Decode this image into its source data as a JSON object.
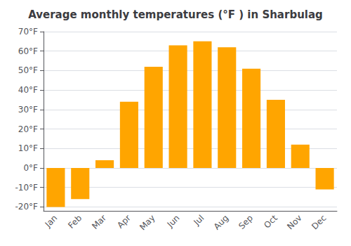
{
  "chart_data": {
    "type": "bar",
    "title": "Average monthly temperatures (°F ) in Sharbulag",
    "categories": [
      "Jan",
      "Feb",
      "Mar",
      "Apr",
      "May",
      "Jun",
      "Jul",
      "Aug",
      "Sep",
      "Oct",
      "Nov",
      "Dec"
    ],
    "values": [
      -20,
      -16,
      4,
      34,
      52,
      63,
      65,
      62,
      51,
      35,
      12,
      -11
    ],
    "color": "#FFA500",
    "ylim": [
      -22,
      70
    ],
    "yticks": [
      {
        "value": -20,
        "label": "-20°F"
      },
      {
        "value": -10,
        "label": "-10°F"
      },
      {
        "value": 0,
        "label": "0°F"
      },
      {
        "value": 10,
        "label": "10°F"
      },
      {
        "value": 20,
        "label": "20°F"
      },
      {
        "value": 30,
        "label": "30°F"
      },
      {
        "value": 40,
        "label": "40°F"
      },
      {
        "value": 50,
        "label": "50°F"
      },
      {
        "value": 60,
        "label": "60°F"
      },
      {
        "value": 70,
        "label": "70°F"
      }
    ],
    "grid": true
  }
}
